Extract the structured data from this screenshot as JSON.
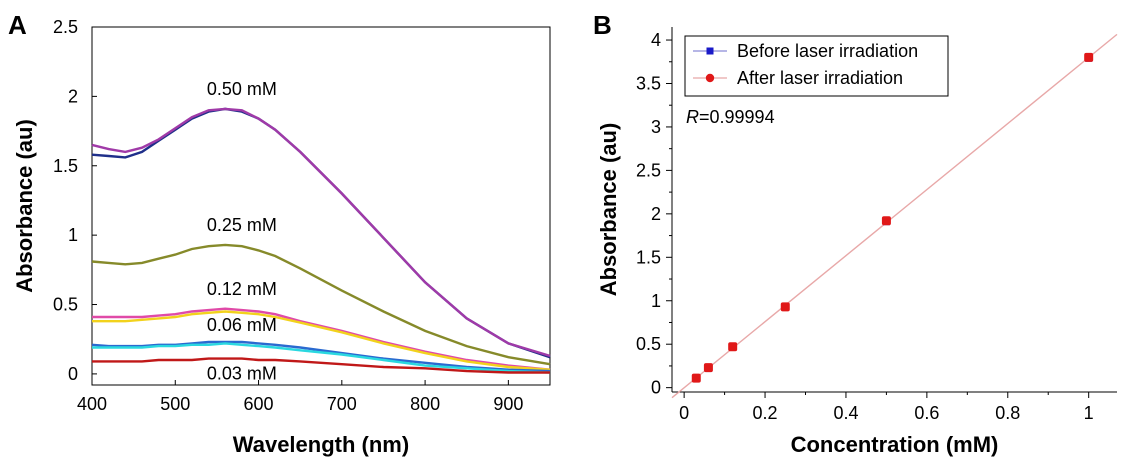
{
  "chart_data": [
    {
      "panel_label": "A",
      "type": "line",
      "xlabel": "Wavelength (nm)",
      "ylabel": "Absorbance (au)",
      "xlim": [
        400,
        950
      ],
      "ylim": [
        -0.08,
        2.5
      ],
      "xticks": [
        400,
        500,
        600,
        700,
        800,
        900
      ],
      "yticks": [
        0,
        0.5,
        1,
        1.5,
        2,
        2.5
      ],
      "ytick_labels": [
        "0",
        "0.5",
        "1",
        "1.5",
        "2",
        "2.5"
      ],
      "grid": false,
      "x": [
        400,
        420,
        440,
        460,
        480,
        500,
        520,
        540,
        560,
        580,
        600,
        620,
        650,
        700,
        750,
        800,
        850,
        900,
        950
      ],
      "series": [
        {
          "name": "0.50 mM",
          "color": "#1f2f8a",
          "values": [
            1.58,
            1.57,
            1.56,
            1.6,
            1.68,
            1.76,
            1.84,
            1.89,
            1.91,
            1.89,
            1.84,
            1.76,
            1.6,
            1.3,
            0.98,
            0.66,
            0.4,
            0.22,
            0.12
          ]
        },
        {
          "name": "0.50 mM",
          "color": "#a03aa8",
          "values": [
            1.65,
            1.62,
            1.6,
            1.63,
            1.69,
            1.77,
            1.85,
            1.9,
            1.91,
            1.9,
            1.84,
            1.76,
            1.6,
            1.3,
            0.98,
            0.66,
            0.4,
            0.22,
            0.13
          ]
        },
        {
          "name": "0.25 mM",
          "color": "#868a2a",
          "values": [
            0.81,
            0.8,
            0.79,
            0.8,
            0.83,
            0.86,
            0.9,
            0.92,
            0.93,
            0.92,
            0.89,
            0.85,
            0.76,
            0.6,
            0.45,
            0.31,
            0.2,
            0.12,
            0.07
          ]
        },
        {
          "name": "0.12 mM",
          "color": "#e04aa8",
          "values": [
            0.41,
            0.41,
            0.41,
            0.41,
            0.42,
            0.43,
            0.45,
            0.46,
            0.47,
            0.46,
            0.45,
            0.43,
            0.38,
            0.31,
            0.23,
            0.16,
            0.1,
            0.06,
            0.03
          ]
        },
        {
          "name": "0.12 mM",
          "color": "#f2d21c",
          "values": [
            0.38,
            0.38,
            0.38,
            0.39,
            0.4,
            0.41,
            0.43,
            0.44,
            0.45,
            0.44,
            0.43,
            0.41,
            0.37,
            0.3,
            0.22,
            0.15,
            0.09,
            0.05,
            0.03
          ]
        },
        {
          "name": "0.06 mM",
          "color": "#2a6ad0",
          "values": [
            0.21,
            0.2,
            0.2,
            0.2,
            0.21,
            0.21,
            0.22,
            0.23,
            0.23,
            0.23,
            0.22,
            0.21,
            0.19,
            0.15,
            0.11,
            0.08,
            0.05,
            0.03,
            0.02
          ]
        },
        {
          "name": "0.06 mM",
          "color": "#2ad8e0",
          "values": [
            0.19,
            0.19,
            0.19,
            0.19,
            0.2,
            0.2,
            0.21,
            0.21,
            0.22,
            0.21,
            0.2,
            0.19,
            0.17,
            0.14,
            0.1,
            0.06,
            0.04,
            0.02,
            0.01
          ]
        },
        {
          "name": "0.03 mM",
          "color": "#c01818",
          "values": [
            0.09,
            0.09,
            0.09,
            0.09,
            0.1,
            0.1,
            0.1,
            0.11,
            0.11,
            0.11,
            0.1,
            0.1,
            0.09,
            0.07,
            0.05,
            0.04,
            0.02,
            0.01,
            0.01
          ]
        }
      ],
      "annotations": [
        {
          "text": "0.50 mM",
          "x": 580,
          "y": 2.01
        },
        {
          "text": "0.25 mM",
          "x": 580,
          "y": 1.03
        },
        {
          "text": "0.12 mM",
          "x": 580,
          "y": 0.57
        },
        {
          "text": "0.06 mM",
          "x": 580,
          "y": 0.31
        },
        {
          "text": "0.03 mM",
          "x": 580,
          "y": -0.04
        }
      ]
    },
    {
      "panel_label": "B",
      "type": "scatter",
      "xlabel": "Concentration (mM)",
      "ylabel": "Absorbance (au)",
      "xlim": [
        -0.03,
        1.07
      ],
      "ylim": [
        -0.05,
        4.15
      ],
      "xticks": [
        0,
        0.2,
        0.4,
        0.6,
        0.8,
        1
      ],
      "yticks": [
        0,
        0.5,
        1,
        1.5,
        2,
        2.5,
        3,
        3.5,
        4
      ],
      "grid": false,
      "legend_position": "top-left",
      "series": [
        {
          "name": "Before laser irradiation",
          "color": "#1a1ac8",
          "marker": "square",
          "x": [
            0.03,
            0.06,
            0.12,
            0.25,
            0.5,
            1.0
          ],
          "y": [
            0.11,
            0.22,
            0.47,
            0.93,
            1.91,
            3.79
          ]
        },
        {
          "name": "After laser irradiation",
          "color": "#e01818",
          "marker": "circle",
          "x": [
            0.03,
            0.06,
            0.12,
            0.25,
            0.5,
            1.0
          ],
          "y": [
            0.11,
            0.23,
            0.47,
            0.93,
            1.92,
            3.8
          ]
        }
      ],
      "fit_line": {
        "color": "#e8a8a8",
        "x": [
          -0.03,
          1.07
        ],
        "y": [
          -0.115,
          4.065
        ]
      },
      "annotation": {
        "italic": "R",
        "rest": "=0.99994"
      }
    }
  ]
}
